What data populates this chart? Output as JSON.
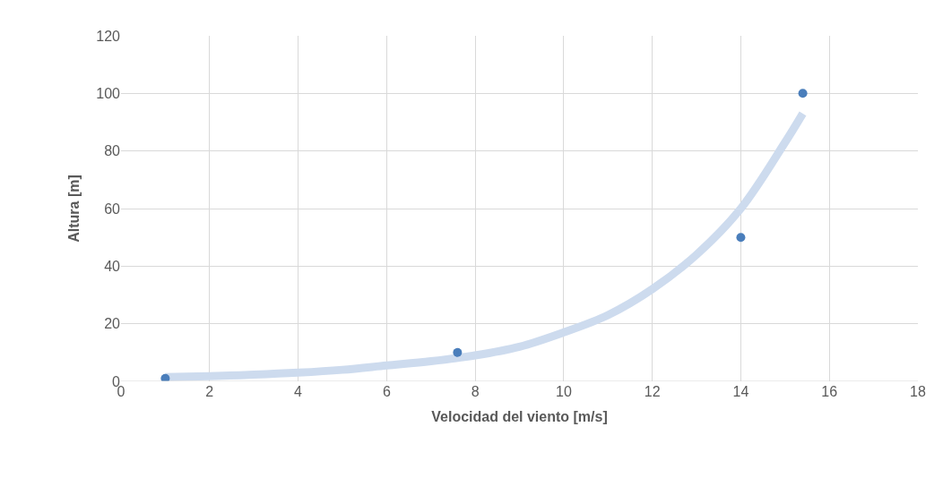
{
  "chart_data": {
    "type": "scatter",
    "xlabel": "Velocidad del viento [m/s]",
    "ylabel": "Altura [m]",
    "xlim": [
      0,
      18
    ],
    "xticks": [
      0,
      2,
      4,
      6,
      8,
      10,
      12,
      14,
      16,
      18
    ],
    "ylim": [
      0,
      120
    ],
    "yticks": [
      0,
      20,
      40,
      60,
      80,
      100,
      120
    ],
    "grid": true,
    "legend": false,
    "series": [
      {
        "type": "line",
        "marker": "none",
        "color": "#cddbee",
        "x": [
          1,
          2,
          3,
          4,
          5,
          6,
          7,
          8,
          9,
          10,
          11,
          12,
          13,
          14,
          15,
          15.4
        ],
        "values": [
          1.5,
          1.8,
          2.3,
          3,
          4,
          5.5,
          7,
          9,
          12,
          17,
          23,
          32,
          44,
          60,
          83,
          93
        ]
      },
      {
        "marker": "circle",
        "color": "#4a7ebb",
        "x": [
          1,
          7.6,
          14,
          15.4
        ],
        "values": [
          1,
          10,
          50,
          100
        ]
      }
    ]
  }
}
